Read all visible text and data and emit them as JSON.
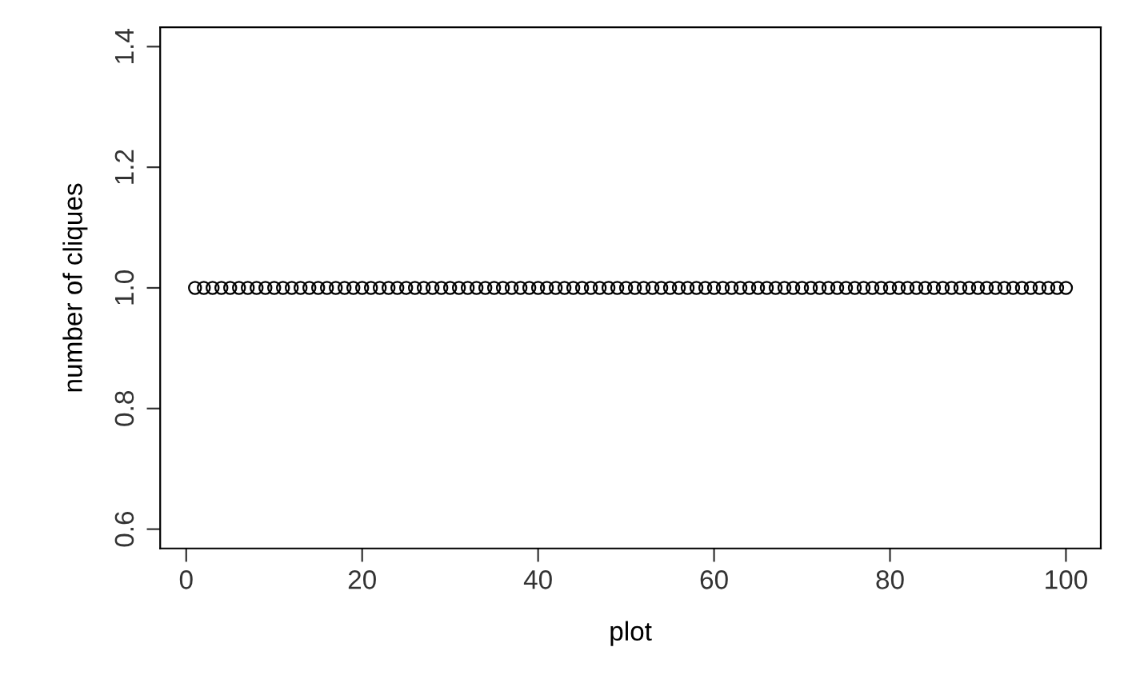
{
  "chart_data": {
    "type": "scatter",
    "xlabel": "plot",
    "ylabel": "number of cliques",
    "x": [
      1,
      2,
      3,
      4,
      5,
      6,
      7,
      8,
      9,
      10,
      11,
      12,
      13,
      14,
      15,
      16,
      17,
      18,
      19,
      20,
      21,
      22,
      23,
      24,
      25,
      26,
      27,
      28,
      29,
      30,
      31,
      32,
      33,
      34,
      35,
      36,
      37,
      38,
      39,
      40,
      41,
      42,
      43,
      44,
      45,
      46,
      47,
      48,
      49,
      50,
      51,
      52,
      53,
      54,
      55,
      56,
      57,
      58,
      59,
      60,
      61,
      62,
      63,
      64,
      65,
      66,
      67,
      68,
      69,
      70,
      71,
      72,
      73,
      74,
      75,
      76,
      77,
      78,
      79,
      80,
      81,
      82,
      83,
      84,
      85,
      86,
      87,
      88,
      89,
      90,
      91,
      92,
      93,
      94,
      95,
      96,
      97,
      98,
      99,
      100
    ],
    "values": [
      1,
      1,
      1,
      1,
      1,
      1,
      1,
      1,
      1,
      1,
      1,
      1,
      1,
      1,
      1,
      1,
      1,
      1,
      1,
      1,
      1,
      1,
      1,
      1,
      1,
      1,
      1,
      1,
      1,
      1,
      1,
      1,
      1,
      1,
      1,
      1,
      1,
      1,
      1,
      1,
      1,
      1,
      1,
      1,
      1,
      1,
      1,
      1,
      1,
      1,
      1,
      1,
      1,
      1,
      1,
      1,
      1,
      1,
      1,
      1,
      1,
      1,
      1,
      1,
      1,
      1,
      1,
      1,
      1,
      1,
      1,
      1,
      1,
      1,
      1,
      1,
      1,
      1,
      1,
      1,
      1,
      1,
      1,
      1,
      1,
      1,
      1,
      1,
      1,
      1,
      1,
      1,
      1,
      1,
      1,
      1,
      1,
      1,
      1,
      1
    ],
    "color": "#000000",
    "marker": "circle",
    "grid": false,
    "xlim": [
      -2.96,
      103.96
    ],
    "ylim": [
      0.568,
      1.432
    ],
    "xticks": [
      0,
      20,
      40,
      60,
      80,
      100
    ],
    "yticks": [
      0.6,
      0.8,
      {
        "value": 1,
        "label": "1.0"
      },
      1.2,
      1.4
    ]
  }
}
